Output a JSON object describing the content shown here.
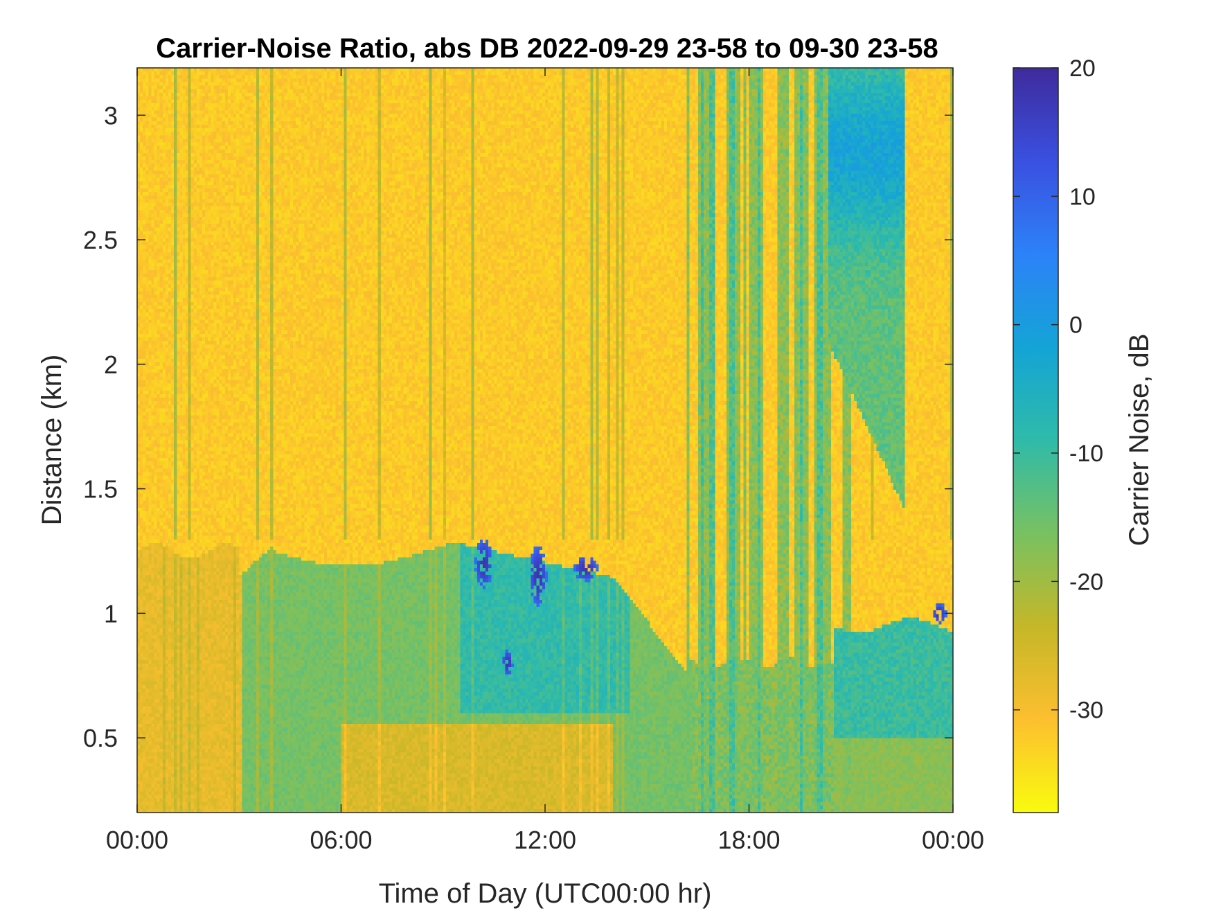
{
  "chart_data": {
    "type": "heatmap",
    "title": "Carrier-Noise Ratio, abs DB 2022-09-29 23-58 to 09-30 23-58",
    "xlabel": "Time of Day (UTC00:00 hr)",
    "ylabel": "Distance (km)",
    "xlim": [
      0,
      24
    ],
    "ylim": [
      0.2,
      3.19
    ],
    "x_ticks": [
      0,
      6,
      12,
      18,
      24
    ],
    "x_tick_labels": [
      "00:00",
      "06:00",
      "12:00",
      "18:00",
      "00:00"
    ],
    "y_ticks": [
      0.5,
      1,
      1.5,
      2,
      2.5,
      3
    ],
    "y_tick_labels": [
      "0.5",
      "1",
      "1.5",
      "2",
      "2.5",
      "3"
    ],
    "colorbar": {
      "label": "Carrier Noise, dB",
      "range": [
        -38,
        20
      ],
      "ticks": [
        -30,
        -20,
        -10,
        0,
        10,
        20
      ],
      "tick_labels": [
        "-30",
        "-20",
        "-10",
        "0",
        "10",
        "20"
      ],
      "colormap": "parula-reversed",
      "colors": [
        "#f9fb0e",
        "#fcbf2f",
        "#c5b728",
        "#78c162",
        "#2fbba9",
        "#14a4d6",
        "#2c82f8",
        "#3a50e0",
        "#3e2b9c"
      ]
    },
    "grid": false,
    "features": [
      {
        "region": "boundary-layer",
        "x_range": [
          3,
          16
        ],
        "y_range": [
          0.2,
          1.3
        ],
        "value_db": -16
      },
      {
        "region": "strong-returns",
        "x_range": [
          9.7,
          13.7
        ],
        "y_range": [
          0.75,
          1.35
        ],
        "value_db": 18
      },
      {
        "region": "turbulent-columns",
        "x_range": [
          16.5,
          21
        ],
        "y_range": [
          0.2,
          3.19
        ],
        "value_db": -14
      },
      {
        "region": "upper-cloud",
        "x_range": [
          20.5,
          22.5
        ],
        "y_range": [
          2.2,
          3.19
        ],
        "value_db": -3
      },
      {
        "region": "evening-layer",
        "x_range": [
          20.5,
          24
        ],
        "y_range": [
          0.2,
          1.0
        ],
        "value_db": -10
      }
    ]
  }
}
